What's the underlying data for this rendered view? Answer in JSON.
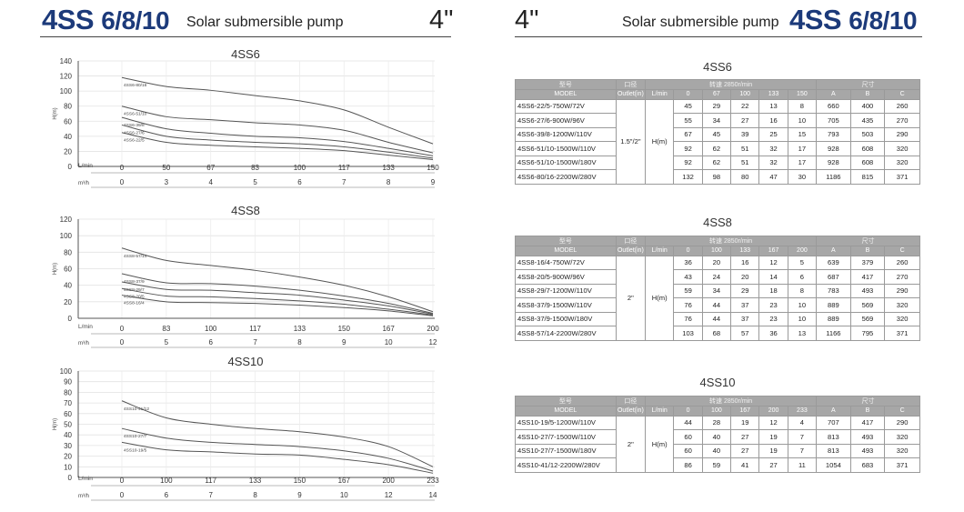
{
  "header_left": {
    "model_a": "4SS ",
    "model_b": "6/8/10",
    "subtitle": "Solar submersible pump",
    "size": "4\""
  },
  "header_right": {
    "size": "4\"",
    "subtitle": "Solar submersible pump",
    "model_a": "4SS ",
    "model_b": "6/8/10"
  },
  "colors": {
    "brand_blue": "#1c3a7a",
    "table_header": "#a7a7a7",
    "curve": "#444444",
    "grid": "#dddddd"
  },
  "charts": [
    {
      "title": "4SS6",
      "ylabel": "H(m)",
      "y_ticks": [
        "140",
        "120",
        "100",
        "80",
        "60",
        "40",
        "20",
        "0"
      ],
      "ylim": [
        0,
        140
      ],
      "flow_unit_lmin": "L/min",
      "flow_unit_m3h": "m³/h",
      "x_lmin": [
        "0",
        "50",
        "67",
        "83",
        "100",
        "117",
        "133",
        "150"
      ],
      "x_m3h": [
        "0",
        "3",
        "4",
        "5",
        "6",
        "7",
        "8",
        "9"
      ],
      "curves": [
        {
          "label": "4SS6-80/16",
          "points": [
            [
              0,
              118
            ],
            [
              1,
              106
            ],
            [
              2,
              101
            ],
            [
              3,
              94
            ],
            [
              4,
              87
            ],
            [
              5,
              75
            ],
            [
              6,
              52
            ],
            [
              7,
              30
            ]
          ]
        },
        {
          "label": "4SS6-51/10",
          "points": [
            [
              0,
              80
            ],
            [
              1,
              66
            ],
            [
              2,
              62
            ],
            [
              3,
              58
            ],
            [
              4,
              55
            ],
            [
              5,
              48
            ],
            [
              6,
              32
            ],
            [
              7,
              18
            ]
          ]
        },
        {
          "label": "4SS6-39/8",
          "points": [
            [
              0,
              65
            ],
            [
              1,
              50
            ],
            [
              2,
              44
            ],
            [
              3,
              40
            ],
            [
              4,
              38
            ],
            [
              5,
              33
            ],
            [
              6,
              24
            ],
            [
              7,
              14
            ]
          ]
        },
        {
          "label": "4SS6-27/6",
          "points": [
            [
              0,
              55
            ],
            [
              1,
              40
            ],
            [
              2,
              35
            ],
            [
              3,
              32
            ],
            [
              4,
              30
            ],
            [
              5,
              26
            ],
            [
              6,
              19
            ],
            [
              7,
              11
            ]
          ]
        },
        {
          "label": "4SS6-22/5",
          "points": [
            [
              0,
              45
            ],
            [
              1,
              32
            ],
            [
              2,
              28
            ],
            [
              3,
              26
            ],
            [
              4,
              24
            ],
            [
              5,
              21
            ],
            [
              6,
              15
            ],
            [
              7,
              9
            ]
          ]
        }
      ]
    },
    {
      "title": "4SS8",
      "ylabel": "H(m)",
      "y_ticks": [
        "120",
        "100",
        "80",
        "60",
        "40",
        "20",
        "0"
      ],
      "ylim": [
        0,
        120
      ],
      "flow_unit_lmin": "L/min",
      "flow_unit_m3h": "m³/h",
      "x_lmin": [
        "0",
        "83",
        "100",
        "117",
        "133",
        "150",
        "167",
        "200"
      ],
      "x_m3h": [
        "0",
        "5",
        "6",
        "7",
        "8",
        "9",
        "10",
        "12"
      ],
      "curves": [
        {
          "label": "4SS8-57/14",
          "points": [
            [
              0,
              85
            ],
            [
              1,
              70
            ],
            [
              2,
              64
            ],
            [
              3,
              58
            ],
            [
              4,
              50
            ],
            [
              5,
              40
            ],
            [
              6,
              26
            ],
            [
              7,
              8
            ]
          ]
        },
        {
          "label": "4SS8-37/9",
          "points": [
            [
              0,
              54
            ],
            [
              1,
              43
            ],
            [
              2,
              42
            ],
            [
              3,
              39
            ],
            [
              4,
              34
            ],
            [
              5,
              27
            ],
            [
              6,
              18
            ],
            [
              7,
              6
            ]
          ]
        },
        {
          "label": "4SS8-29/7",
          "points": [
            [
              0,
              44
            ],
            [
              1,
              35
            ],
            [
              2,
              34
            ],
            [
              3,
              31
            ],
            [
              4,
              28
            ],
            [
              5,
              22
            ],
            [
              6,
              15
            ],
            [
              7,
              5
            ]
          ]
        },
        {
          "label": "4SS8-20/5",
          "points": [
            [
              0,
              36
            ],
            [
              1,
              27
            ],
            [
              2,
              26
            ],
            [
              3,
              24
            ],
            [
              4,
              21
            ],
            [
              5,
              17
            ],
            [
              6,
              11
            ],
            [
              7,
              4
            ]
          ]
        },
        {
          "label": "4SS8-16/4",
          "points": [
            [
              0,
              28
            ],
            [
              1,
              20
            ],
            [
              2,
              19
            ],
            [
              3,
              18
            ],
            [
              4,
              16
            ],
            [
              5,
              13
            ],
            [
              6,
              9
            ],
            [
              7,
              3
            ]
          ]
        }
      ]
    },
    {
      "title": "4SS10",
      "ylabel": "H(m)",
      "y_ticks": [
        "100",
        "90",
        "80",
        "70",
        "60",
        "50",
        "40",
        "30",
        "20",
        "10",
        "0"
      ],
      "ylim": [
        0,
        100
      ],
      "flow_unit_lmin": "L/min",
      "flow_unit_m3h": "m³/h",
      "x_lmin": [
        "0",
        "100",
        "117",
        "133",
        "150",
        "167",
        "200",
        "233"
      ],
      "x_m3h": [
        "0",
        "6",
        "7",
        "8",
        "9",
        "10",
        "12",
        "14"
      ],
      "curves": [
        {
          "label": "4SS10-41/12",
          "points": [
            [
              0,
              72
            ],
            [
              1,
              56
            ],
            [
              2,
              50
            ],
            [
              3,
              46
            ],
            [
              4,
              43
            ],
            [
              5,
              38
            ],
            [
              6,
              29
            ],
            [
              7,
              10
            ]
          ]
        },
        {
          "label": "4SS10-27/7",
          "points": [
            [
              0,
              46
            ],
            [
              1,
              37
            ],
            [
              2,
              33
            ],
            [
              3,
              31
            ],
            [
              4,
              29
            ],
            [
              5,
              25
            ],
            [
              6,
              18
            ],
            [
              7,
              6
            ]
          ]
        },
        {
          "label": "4SS10-19/5",
          "points": [
            [
              0,
              33
            ],
            [
              1,
              26
            ],
            [
              2,
              24
            ],
            [
              3,
              22
            ],
            [
              4,
              21
            ],
            [
              5,
              17
            ],
            [
              6,
              12
            ],
            [
              7,
              4
            ]
          ]
        }
      ]
    }
  ],
  "tables": [
    {
      "title": "4SS6",
      "head1": {
        "model": "型号",
        "outlet": "口径",
        "speed": "转速 2850r/min",
        "size": "尺寸"
      },
      "head2": {
        "model": "MODEL",
        "outlet": "Outlet(in)",
        "lmin": "L/min",
        "flows": [
          "0",
          "67",
          "100",
          "133",
          "150"
        ],
        "dims": [
          "A",
          "B",
          "C"
        ]
      },
      "outlet_value": "1.5\"/2\"",
      "head_label": "H(m)",
      "rows": [
        {
          "model": "4SS6-22/5-750W/72V",
          "heads": [
            "45",
            "29",
            "22",
            "13",
            "8"
          ],
          "dims": [
            "660",
            "400",
            "260"
          ]
        },
        {
          "model": "4SS6-27/6-900W/96V",
          "heads": [
            "55",
            "34",
            "27",
            "16",
            "10"
          ],
          "dims": [
            "705",
            "435",
            "270"
          ]
        },
        {
          "model": "4SS6-39/8-1200W/110V",
          "heads": [
            "67",
            "45",
            "39",
            "25",
            "15"
          ],
          "dims": [
            "793",
            "503",
            "290"
          ]
        },
        {
          "model": "4SS6-51/10-1500W/110V",
          "heads": [
            "92",
            "62",
            "51",
            "32",
            "17"
          ],
          "dims": [
            "928",
            "608",
            "320"
          ]
        },
        {
          "model": "4SS6-51/10-1500W/180V",
          "heads": [
            "92",
            "62",
            "51",
            "32",
            "17"
          ],
          "dims": [
            "928",
            "608",
            "320"
          ]
        },
        {
          "model": "4SS6-80/16-2200W/280V",
          "heads": [
            "132",
            "98",
            "80",
            "47",
            "30"
          ],
          "dims": [
            "1186",
            "815",
            "371"
          ]
        }
      ]
    },
    {
      "title": "4SS8",
      "head1": {
        "model": "型号",
        "outlet": "口径",
        "speed": "转速 2850r/min",
        "size": "尺寸"
      },
      "head2": {
        "model": "MODEL",
        "outlet": "Outlet(in)",
        "lmin": "L/min",
        "flows": [
          "0",
          "100",
          "133",
          "167",
          "200"
        ],
        "dims": [
          "A",
          "B",
          "C"
        ]
      },
      "outlet_value": "2\"",
      "head_label": "H(m)",
      "rows": [
        {
          "model": "4SS8-16/4-750W/72V",
          "heads": [
            "36",
            "20",
            "16",
            "12",
            "5"
          ],
          "dims": [
            "639",
            "379",
            "260"
          ]
        },
        {
          "model": "4SS8-20/5-900W/96V",
          "heads": [
            "43",
            "24",
            "20",
            "14",
            "6"
          ],
          "dims": [
            "687",
            "417",
            "270"
          ]
        },
        {
          "model": "4SS8-29/7-1200W/110V",
          "heads": [
            "59",
            "34",
            "29",
            "18",
            "8"
          ],
          "dims": [
            "783",
            "493",
            "290"
          ]
        },
        {
          "model": "4SS8-37/9-1500W/110V",
          "heads": [
            "76",
            "44",
            "37",
            "23",
            "10"
          ],
          "dims": [
            "889",
            "569",
            "320"
          ]
        },
        {
          "model": "4SS8-37/9-1500W/180V",
          "heads": [
            "76",
            "44",
            "37",
            "23",
            "10"
          ],
          "dims": [
            "889",
            "569",
            "320"
          ]
        },
        {
          "model": "4SS8-57/14-2200W/280V",
          "heads": [
            "103",
            "68",
            "57",
            "36",
            "13"
          ],
          "dims": [
            "1166",
            "795",
            "371"
          ]
        }
      ]
    },
    {
      "title": "4SS10",
      "head1": {
        "model": "型号",
        "outlet": "口径",
        "speed": "转速 2850r/min",
        "size": "尺寸"
      },
      "head2": {
        "model": "MODEL",
        "outlet": "Outlet(in)",
        "lmin": "L/min",
        "flows": [
          "0",
          "100",
          "167",
          "200",
          "233"
        ],
        "dims": [
          "A",
          "B",
          "C"
        ]
      },
      "outlet_value": "2\"",
      "head_label": "H(m)",
      "rows": [
        {
          "model": "4SS10-19/5-1200W/110V",
          "heads": [
            "44",
            "28",
            "19",
            "12",
            "4"
          ],
          "dims": [
            "707",
            "417",
            "290"
          ]
        },
        {
          "model": "4SS10-27/7-1500W/110V",
          "heads": [
            "60",
            "40",
            "27",
            "19",
            "7"
          ],
          "dims": [
            "813",
            "493",
            "320"
          ]
        },
        {
          "model": "4SS10-27/7-1500W/180V",
          "heads": [
            "60",
            "40",
            "27",
            "19",
            "7"
          ],
          "dims": [
            "813",
            "493",
            "320"
          ]
        },
        {
          "model": "4SS10-41/12-2200W/280V",
          "heads": [
            "86",
            "59",
            "41",
            "27",
            "11"
          ],
          "dims": [
            "1054",
            "683",
            "371"
          ]
        }
      ]
    }
  ]
}
